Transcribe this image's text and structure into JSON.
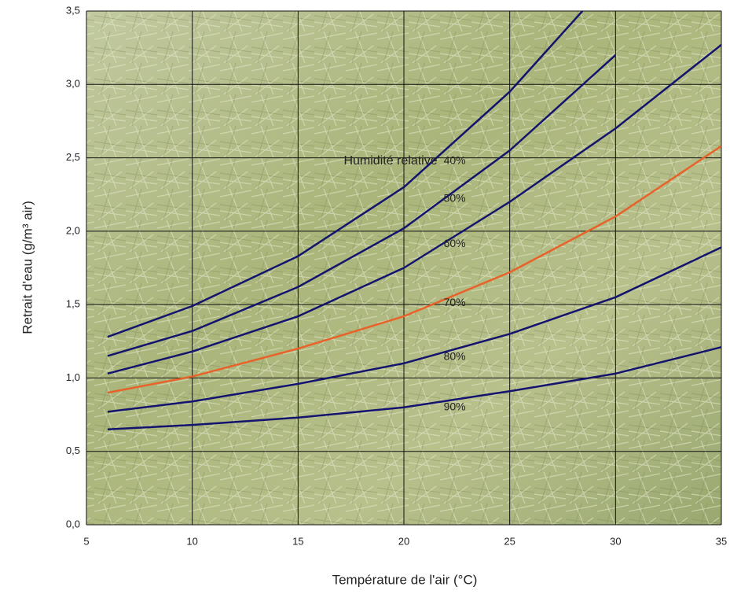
{
  "chart_data": {
    "type": "line",
    "annotation": "Humidité relative",
    "x_label": "Température de l'air (°C)",
    "y_label": "Retrait d'eau (g/m³ air)",
    "x": [
      6,
      10,
      15,
      20,
      25,
      30,
      35
    ],
    "series": [
      {
        "name": "40%",
        "color": "#14146e",
        "values": [
          1.28,
          1.49,
          1.83,
          2.3,
          2.95,
          3.75,
          null
        ]
      },
      {
        "name": "50%",
        "color": "#14146e",
        "values": [
          1.15,
          1.32,
          1.62,
          2.02,
          2.55,
          3.2,
          null
        ]
      },
      {
        "name": "60%",
        "color": "#14146e",
        "values": [
          1.03,
          1.18,
          1.42,
          1.75,
          2.2,
          2.7,
          3.27
        ]
      },
      {
        "name": "70%",
        "color": "#e8622a",
        "values": [
          0.9,
          1.01,
          1.2,
          1.42,
          1.72,
          2.1,
          2.58
        ]
      },
      {
        "name": "80%",
        "color": "#14146e",
        "values": [
          0.77,
          0.84,
          0.96,
          1.1,
          1.3,
          1.55,
          1.89
        ]
      },
      {
        "name": "90%",
        "color": "#14146e",
        "values": [
          0.65,
          0.68,
          0.73,
          0.8,
          0.91,
          1.03,
          1.21
        ]
      }
    ],
    "xlim": [
      5,
      35
    ],
    "xticks": [
      5,
      10,
      15,
      20,
      25,
      30,
      35
    ],
    "ylim": [
      0,
      3.5
    ],
    "yticks": [
      {
        "value": 0,
        "label": "0,0"
      },
      {
        "value": 0.5,
        "label": "0,5"
      },
      {
        "value": 1,
        "label": "1,0"
      },
      {
        "value": 1.5,
        "label": "1,5"
      },
      {
        "value": 2,
        "label": "2,0"
      },
      {
        "value": 2.5,
        "label": "2,5"
      },
      {
        "value": 3,
        "label": "3,0"
      },
      {
        "value": 3.5,
        "label": "3,5"
      }
    ],
    "grid": true
  }
}
